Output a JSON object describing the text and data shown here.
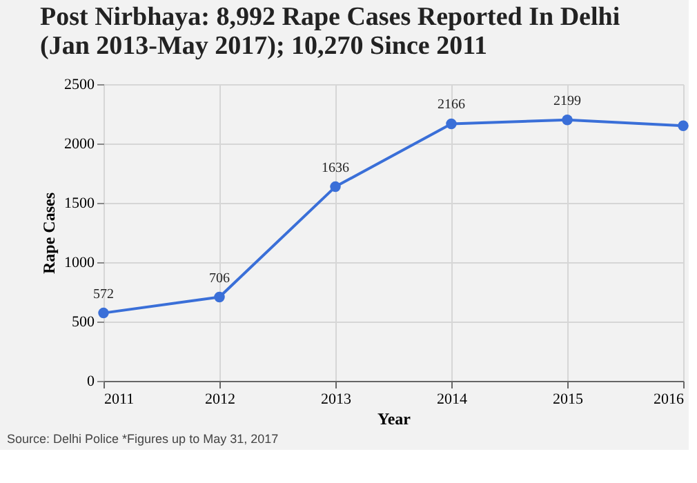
{
  "chart_data": {
    "type": "line",
    "title": [
      "Post Nirbhaya: 8,992 Rape Cases Reported In Delhi",
      "(Jan 2013-May 2017); 10,270 Since 2011"
    ],
    "xlabel": "Year",
    "ylabel": "Rape Cases",
    "x": [
      2011,
      2012,
      2013,
      2014,
      2015,
      2016
    ],
    "series": [
      {
        "color": "#3a6fd8",
        "values": [
          572,
          706,
          1636,
          2166,
          2199,
          2150
        ]
      }
    ],
    "value_labels": [
      "572",
      "706",
      "1636",
      "2166",
      "2199",
      null
    ],
    "xlim": [
      2011,
      2016
    ],
    "xticks": [
      2011,
      2012,
      2013,
      2014,
      2015,
      2016
    ],
    "ylim": [
      0,
      2500
    ],
    "yticks": [
      0,
      500,
      1000,
      1500,
      2000,
      2500
    ],
    "grid": true,
    "marker": "circle",
    "line_style": "solid",
    "annotations": [
      "Source: Delhi Police *Figures up to May 31, 2017"
    ]
  }
}
